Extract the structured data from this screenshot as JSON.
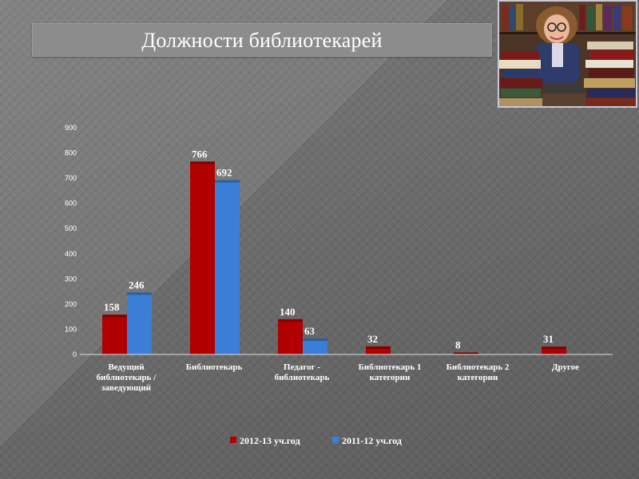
{
  "title": "Должности библиотекарей",
  "photo": {
    "icon": "librarian-photo-icon"
  },
  "colors": {
    "series1": "#b00000",
    "series2": "#3a7fd5"
  },
  "chart_data": {
    "type": "bar",
    "categories": [
      [
        "Ведущий",
        "библиотекарь  /",
        "заведующий"
      ],
      [
        "Библиотекарь"
      ],
      [
        "Педагог -",
        "библиотекарь"
      ],
      [
        "Библиотекарь  1",
        "категории"
      ],
      [
        "Библиотекарь  2",
        "категории"
      ],
      [
        "Другое"
      ]
    ],
    "series": [
      {
        "name": "2012-13 уч.год",
        "values": [
          158,
          766,
          140,
          32,
          8,
          31
        ]
      },
      {
        "name": "2011-12 уч.год",
        "values": [
          246,
          692,
          63,
          null,
          null,
          null
        ]
      }
    ],
    "ylim": [
      0,
      900
    ],
    "yticks": [
      0,
      100,
      200,
      300,
      400,
      500,
      600,
      700,
      800,
      900
    ],
    "grid": false,
    "legend": "bottom"
  }
}
